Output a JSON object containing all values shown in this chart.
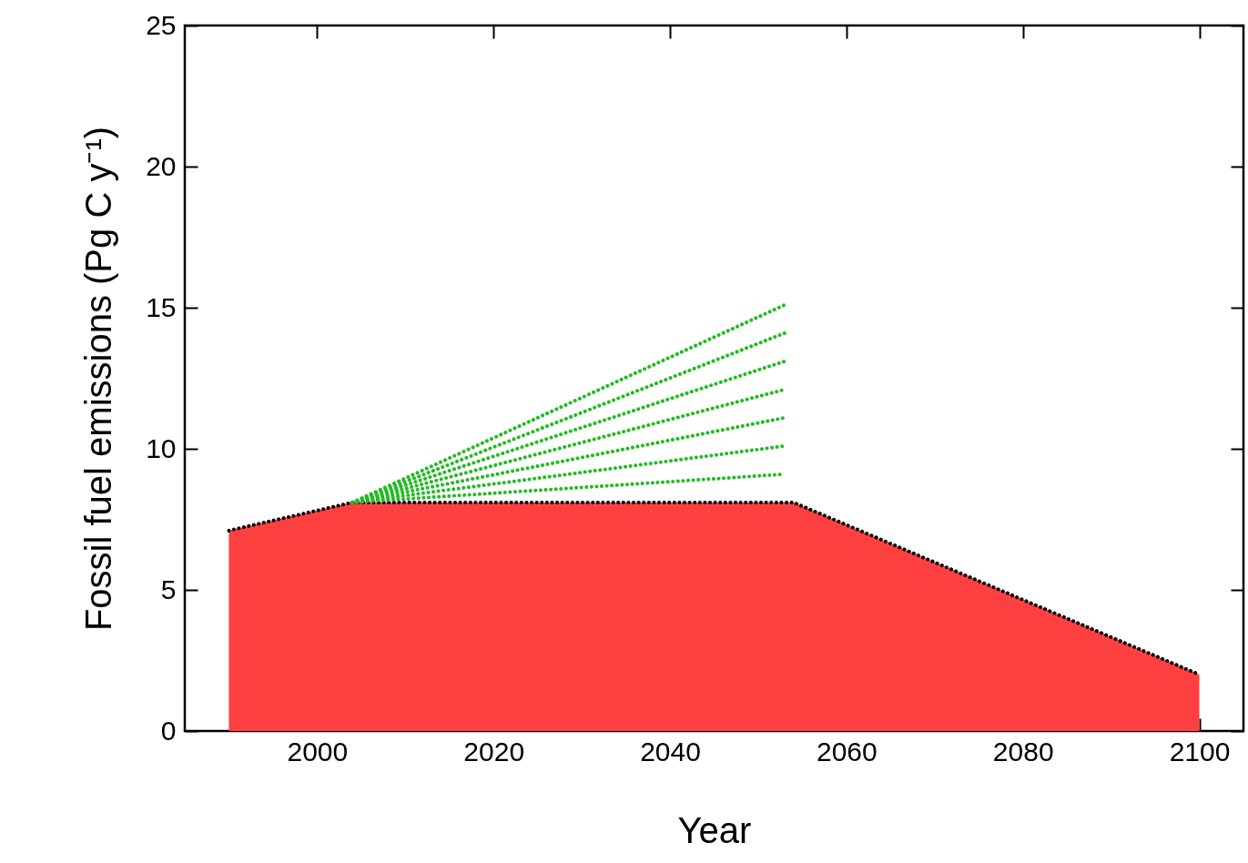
{
  "chart_data": {
    "type": "line",
    "xlabel": "Year",
    "ylabel": "Fossil fuel emissions  (Pg C y⁻¹)",
    "xlim": [
      1985,
      2105
    ],
    "xticks": [
      2000,
      2020,
      2040,
      2060,
      2080,
      2100
    ],
    "ylim": [
      0,
      25
    ],
    "yticks": [
      0,
      5,
      10,
      15,
      20,
      25
    ],
    "grid": false,
    "legend": false,
    "marker": "none",
    "line_style": "dotted",
    "series": [
      {
        "type": "area",
        "color": "#ff4040",
        "x": [
          1990,
          2004,
          2054,
          2100
        ],
        "values": [
          7.1,
          8.1,
          8.1,
          2.0
        ]
      },
      {
        "color": "#22bb22",
        "x": [
          2004,
          2053
        ],
        "values": [
          8.1,
          9.1
        ]
      },
      {
        "color": "#22bb22",
        "x": [
          2004,
          2053
        ],
        "values": [
          8.1,
          10.1
        ]
      },
      {
        "color": "#22bb22",
        "x": [
          2004,
          2053
        ],
        "values": [
          8.1,
          11.1
        ]
      },
      {
        "color": "#22bb22",
        "x": [
          2004,
          2053
        ],
        "values": [
          8.1,
          12.1
        ]
      },
      {
        "color": "#22bb22",
        "x": [
          2004,
          2053
        ],
        "values": [
          8.1,
          13.1
        ]
      },
      {
        "color": "#22bb22",
        "x": [
          2004,
          2053
        ],
        "values": [
          8.1,
          14.1
        ]
      },
      {
        "color": "#22bb22",
        "x": [
          2004,
          2053
        ],
        "values": [
          8.1,
          15.1
        ]
      }
    ]
  }
}
